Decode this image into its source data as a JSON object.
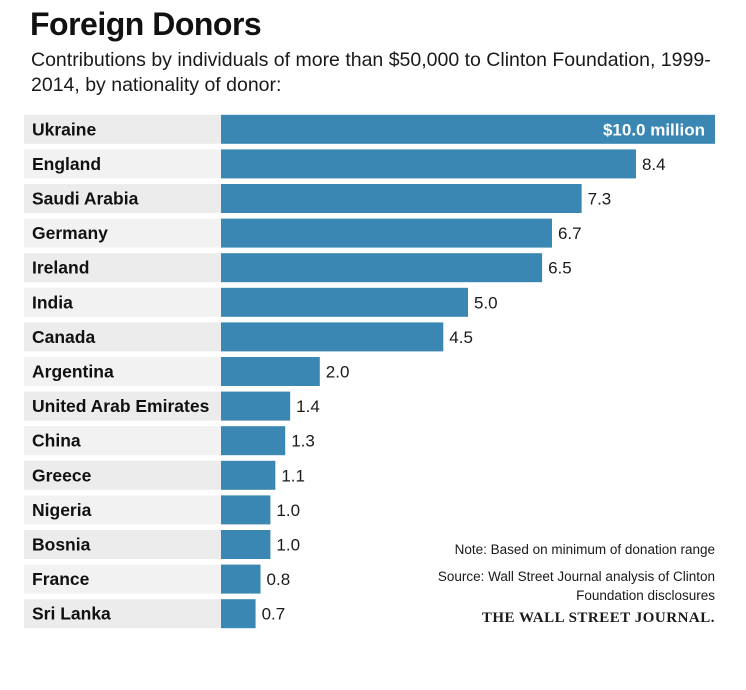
{
  "header": {
    "title": "Foreign Donors",
    "subtitle": "Contributions by individuals of more than $50,000 to Clinton Foundation, 1999-2014, by nationality of donor:"
  },
  "footer": {
    "note": "Note: Based on minimum of donation range",
    "source": "Source: Wall Street Journal analysis of Clinton Foundation disclosures",
    "brand": "THE WALL STREET JOURNAL."
  },
  "colors": {
    "bar": "#3a87b3",
    "row_shade": "#ececec",
    "label_band": "#f2f2f2"
  },
  "chart_data": {
    "type": "bar",
    "orientation": "horizontal",
    "categories": [
      "Ukraine",
      "England",
      "Saudi Arabia",
      "Germany",
      "Ireland",
      "India",
      "Canada",
      "Argentina",
      "United Arab Emirates",
      "China",
      "Greece",
      "Nigeria",
      "Bosnia",
      "France",
      "Sri Lanka"
    ],
    "values": [
      10.0,
      8.4,
      7.3,
      6.7,
      6.5,
      5.0,
      4.5,
      2.0,
      1.4,
      1.3,
      1.1,
      1.0,
      1.0,
      0.8,
      0.7
    ],
    "value_labels": [
      "$10.0 million",
      "8.4",
      "7.3",
      "6.7",
      "6.5",
      "5.0",
      "4.5",
      "2.0",
      "1.4",
      "1.3",
      "1.1",
      "1.0",
      "1.0",
      "0.8",
      "0.7"
    ],
    "xlim": [
      0,
      10
    ],
    "grid": false,
    "legend": "none"
  }
}
